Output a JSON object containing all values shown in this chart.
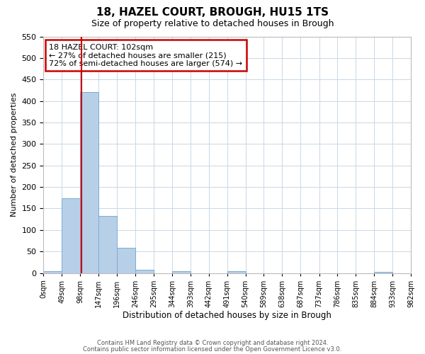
{
  "title": "18, HAZEL COURT, BROUGH, HU15 1TS",
  "subtitle": "Size of property relative to detached houses in Brough",
  "xlabel": "Distribution of detached houses by size in Brough",
  "ylabel": "Number of detached properties",
  "bin_edges": [
    0,
    49,
    98,
    147,
    196,
    246,
    295,
    344,
    393,
    442,
    491,
    540,
    589,
    638,
    687,
    737,
    786,
    835,
    884,
    933,
    982
  ],
  "bin_labels": [
    "0sqm",
    "49sqm",
    "98sqm",
    "147sqm",
    "196sqm",
    "246sqm",
    "295sqm",
    "344sqm",
    "393sqm",
    "442sqm",
    "491sqm",
    "540sqm",
    "589sqm",
    "638sqm",
    "687sqm",
    "737sqm",
    "786sqm",
    "835sqm",
    "884sqm",
    "933sqm",
    "982sqm"
  ],
  "bar_heights": [
    5,
    174,
    421,
    133,
    58,
    7,
    0,
    5,
    0,
    0,
    5,
    0,
    0,
    0,
    0,
    0,
    0,
    0,
    2,
    0,
    0
  ],
  "bar_color": "#b8cfe8",
  "bar_edgecolor": "#7aadd4",
  "property_line_x": 102,
  "property_line_color": "#cc0000",
  "ylim": [
    0,
    550
  ],
  "yticks": [
    0,
    50,
    100,
    150,
    200,
    250,
    300,
    350,
    400,
    450,
    500,
    550
  ],
  "annotation_title": "18 HAZEL COURT: 102sqm",
  "annotation_line1": "← 27% of detached houses are smaller (215)",
  "annotation_line2": "72% of semi-detached houses are larger (574) →",
  "annotation_box_color": "#ffffff",
  "annotation_box_edgecolor": "#cc0000",
  "footer1": "Contains HM Land Registry data © Crown copyright and database right 2024.",
  "footer2": "Contains public sector information licensed under the Open Government Licence v3.0.",
  "background_color": "#ffffff",
  "grid_color": "#c8d8e8"
}
